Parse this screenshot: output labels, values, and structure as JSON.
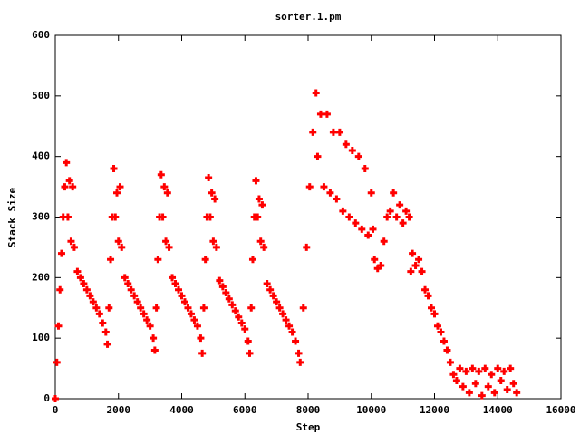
{
  "chart_data": {
    "type": "scatter",
    "title": "sorter.1.pm",
    "x_label": "Step",
    "y_label": "Stack Size",
    "xlim": [
      0,
      16000
    ],
    "ylim": [
      0,
      600
    ],
    "xticks": [
      0,
      2000,
      4000,
      6000,
      8000,
      10000,
      12000,
      14000,
      16000
    ],
    "yticks": [
      0,
      100,
      200,
      300,
      400,
      500,
      600
    ],
    "series": [
      {
        "color": "#ff0000",
        "x": [
          0,
          50,
          100,
          150,
          200,
          250,
          300,
          350,
          400,
          450,
          500,
          550,
          600,
          700,
          800,
          900,
          1000,
          1100,
          1200,
          1300,
          1400,
          1500,
          1600,
          1650,
          1700,
          1750,
          1800,
          1850,
          1900,
          1950,
          2000,
          2050,
          2100,
          2200,
          2300,
          2400,
          2500,
          2600,
          2700,
          2800,
          2900,
          3000,
          3100,
          3150,
          3200,
          3250,
          3300,
          3350,
          3400,
          3450,
          3500,
          3550,
          3600,
          3700,
          3800,
          3900,
          4000,
          4100,
          4200,
          4300,
          4400,
          4500,
          4600,
          4650,
          4700,
          4750,
          4800,
          4850,
          4900,
          4950,
          5000,
          5050,
          5100,
          5200,
          5300,
          5400,
          5500,
          5600,
          5700,
          5800,
          5900,
          6000,
          6100,
          6150,
          6200,
          6250,
          6300,
          6350,
          6400,
          6450,
          6500,
          6550,
          6600,
          6700,
          6800,
          6900,
          7000,
          7100,
          7200,
          7300,
          7400,
          7500,
          7600,
          7700,
          7750,
          7850,
          7950,
          8050,
          8150,
          8250,
          8300,
          8400,
          8500,
          8600,
          8700,
          8800,
          8900,
          9000,
          9100,
          9200,
          9300,
          9400,
          9500,
          9600,
          9700,
          9800,
          9900,
          10000,
          10050,
          10100,
          10200,
          10300,
          10400,
          10500,
          10600,
          10700,
          10800,
          10900,
          11000,
          11100,
          11200,
          11250,
          11300,
          11400,
          11500,
          11600,
          11700,
          11800,
          11900,
          12000,
          12100,
          12200,
          12300,
          12400,
          12500,
          12600,
          12700,
          12800,
          12900,
          13000,
          13100,
          13200,
          13300,
          13400,
          13500,
          13600,
          13700,
          13800,
          13900,
          14000,
          14100,
          14200,
          14300,
          14400,
          14500,
          14600
        ],
        "values": [
          0,
          60,
          120,
          180,
          240,
          300,
          350,
          390,
          300,
          360,
          260,
          350,
          250,
          210,
          200,
          190,
          180,
          170,
          160,
          150,
          140,
          125,
          110,
          90,
          150,
          230,
          300,
          380,
          300,
          340,
          260,
          350,
          250,
          200,
          190,
          180,
          170,
          160,
          150,
          140,
          130,
          120,
          100,
          80,
          150,
          230,
          300,
          370,
          300,
          350,
          260,
          340,
          250,
          200,
          190,
          180,
          170,
          160,
          150,
          140,
          130,
          120,
          100,
          75,
          150,
          230,
          300,
          365,
          300,
          340,
          260,
          330,
          250,
          195,
          185,
          175,
          165,
          155,
          145,
          135,
          125,
          115,
          95,
          75,
          150,
          230,
          300,
          360,
          300,
          330,
          260,
          320,
          250,
          190,
          180,
          170,
          160,
          150,
          140,
          130,
          120,
          110,
          95,
          75,
          60,
          150,
          250,
          350,
          440,
          505,
          400,
          470,
          350,
          470,
          340,
          440,
          330,
          440,
          310,
          420,
          300,
          410,
          290,
          400,
          280,
          380,
          270,
          340,
          280,
          230,
          215,
          220,
          260,
          300,
          310,
          340,
          300,
          320,
          290,
          310,
          300,
          210,
          240,
          220,
          230,
          210,
          180,
          170,
          150,
          140,
          120,
          110,
          95,
          80,
          60,
          40,
          30,
          50,
          20,
          45,
          10,
          50,
          25,
          45,
          5,
          50,
          20,
          40,
          10,
          50,
          30,
          45,
          15,
          50,
          25,
          10
        ]
      }
    ]
  }
}
